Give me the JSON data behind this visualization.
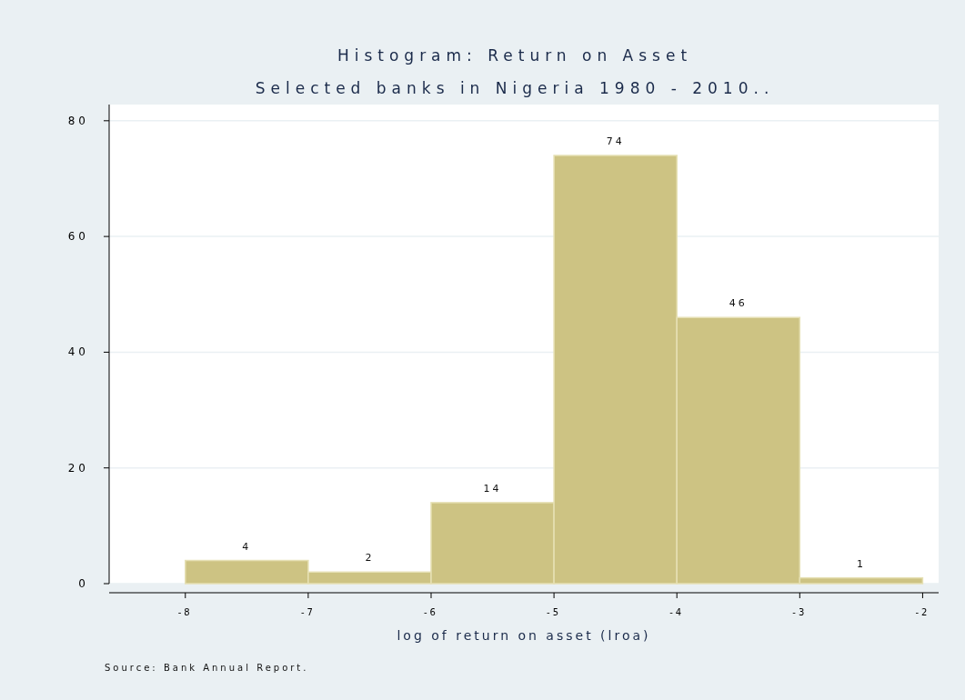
{
  "chart_data": {
    "type": "histogram",
    "title": "Histogram: Return on Asset",
    "subtitle": "Selected banks in Nigeria 1980 - 2010..",
    "xlabel": "log of return on asset (lroa)",
    "bins": [
      -8,
      -7,
      -6,
      -5,
      -4,
      -3,
      -2
    ],
    "values": [
      4,
      2,
      14,
      74,
      46,
      1
    ],
    "color": "#cdc383",
    "xlim": [
      -8.62,
      -1.87
    ],
    "xticks": [
      -8,
      -7,
      -6,
      -5,
      -4,
      -3,
      -2
    ],
    "ylim": [
      0,
      82.8
    ],
    "yticks": [
      0,
      20,
      40,
      60,
      80
    ],
    "grid": "y",
    "data_labels": true,
    "annotations": [
      "Source: Bank Annual Report."
    ]
  }
}
